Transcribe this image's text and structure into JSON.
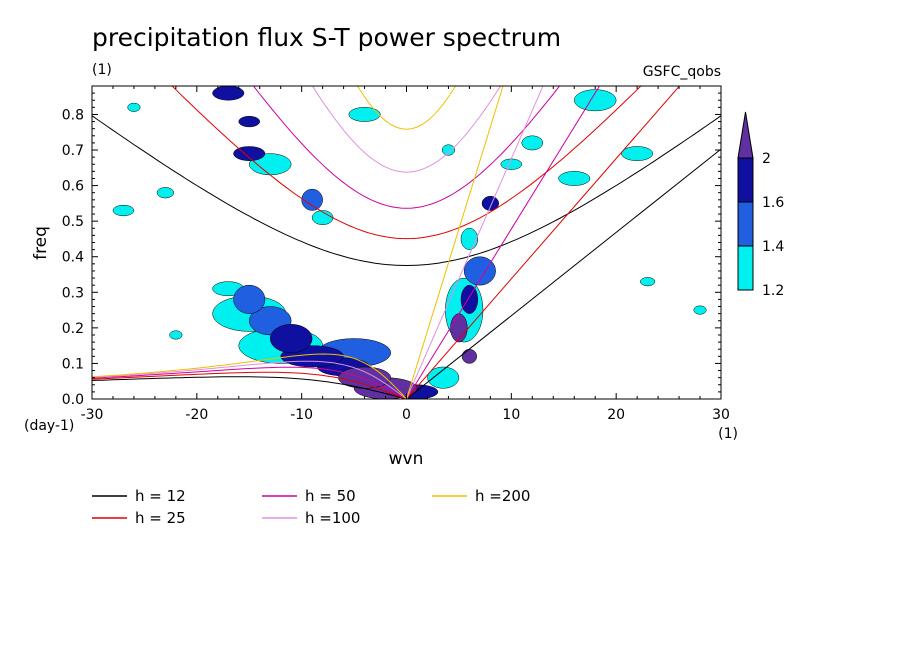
{
  "chart_data": {
    "type": "heatmap",
    "title": "precipitation flux S-T power spectrum",
    "left_subtitle": "(1)",
    "right_subtitle": "GSFC_qobs",
    "xlabel": "wvn",
    "ylabel": "freq",
    "x_unit": "(1)",
    "y_unit": "(day-1)",
    "xlim": [
      -30,
      30
    ],
    "ylim": [
      0,
      0.88
    ],
    "xticks": [
      -30,
      -20,
      -10,
      0,
      10,
      20,
      30
    ],
    "xtick_labels": [
      "-30",
      "-20",
      "-10",
      "0",
      "10",
      "20",
      "30"
    ],
    "yticks": [
      0,
      0.1,
      0.2,
      0.3,
      0.4,
      0.5,
      0.6,
      0.7,
      0.8
    ],
    "ytick_labels": [
      "0.0",
      "0.1",
      "0.2",
      "0.3",
      "0.4",
      "0.5",
      "0.6",
      "0.7",
      "0.8"
    ],
    "colorbar": {
      "levels": [
        1.2,
        1.4,
        1.6,
        2
      ],
      "labels": [
        "1.2",
        "1.4",
        "1.6",
        "2"
      ],
      "colors": [
        "#00f0f0",
        "#2060e0",
        "#1010a0",
        "#6030a0"
      ],
      "extend": "max"
    },
    "dispersion_curves": [
      {
        "label": "h = 12",
        "h": 12,
        "color": "#000000"
      },
      {
        "label": "h = 25",
        "h": 25,
        "color": "#e00000"
      },
      {
        "label": "h = 50",
        "h": 50,
        "color": "#d000a0"
      },
      {
        "label": "h =100",
        "h": 100,
        "color": "#e090e0"
      },
      {
        "label": "h =200",
        "h": 200,
        "color": "#f0c000"
      }
    ],
    "contour_blobs": [
      {
        "x": -2,
        "y": 0.03,
        "rx": 3.0,
        "ry": 0.03,
        "level": 3
      },
      {
        "x": -4,
        "y": 0.06,
        "rx": 2.5,
        "ry": 0.03,
        "level": 3
      },
      {
        "x": -6,
        "y": 0.09,
        "rx": 2.5,
        "ry": 0.025,
        "level": 2
      },
      {
        "x": -9,
        "y": 0.12,
        "rx": 3.0,
        "ry": 0.03,
        "level": 2
      },
      {
        "x": -11,
        "y": 0.17,
        "rx": 2.0,
        "ry": 0.04,
        "level": 2
      },
      {
        "x": -13,
        "y": 0.22,
        "rx": 2.0,
        "ry": 0.04,
        "level": 1
      },
      {
        "x": -15,
        "y": 0.28,
        "rx": 1.5,
        "ry": 0.04,
        "level": 1
      },
      {
        "x": -5,
        "y": 0.13,
        "rx": 3.5,
        "ry": 0.04,
        "level": 1
      },
      {
        "x": -12,
        "y": 0.15,
        "rx": 4.0,
        "ry": 0.05,
        "level": 0
      },
      {
        "x": -15,
        "y": 0.24,
        "rx": 3.5,
        "ry": 0.05,
        "level": 0
      },
      {
        "x": -17,
        "y": 0.31,
        "rx": 1.5,
        "ry": 0.02,
        "level": 0
      },
      {
        "x": 1,
        "y": 0.02,
        "rx": 2.0,
        "ry": 0.02,
        "level": 2
      },
      {
        "x": 3.5,
        "y": 0.06,
        "rx": 1.5,
        "ry": 0.03,
        "level": 0
      },
      {
        "x": 5,
        "y": 0.2,
        "rx": 0.8,
        "ry": 0.04,
        "level": 3
      },
      {
        "x": 6,
        "y": 0.28,
        "rx": 0.8,
        "ry": 0.04,
        "level": 2
      },
      {
        "x": 5.5,
        "y": 0.25,
        "rx": 1.8,
        "ry": 0.09,
        "level": 0
      },
      {
        "x": 7,
        "y": 0.36,
        "rx": 1.5,
        "ry": 0.04,
        "level": 1
      },
      {
        "x": 6,
        "y": 0.12,
        "rx": 0.7,
        "ry": 0.02,
        "level": 3
      },
      {
        "x": 8,
        "y": 0.55,
        "rx": 0.8,
        "ry": 0.02,
        "level": 2
      },
      {
        "x": -15,
        "y": 0.69,
        "rx": 1.5,
        "ry": 0.02,
        "level": 2
      },
      {
        "x": -13,
        "y": 0.66,
        "rx": 2.0,
        "ry": 0.03,
        "level": 0
      },
      {
        "x": -17,
        "y": 0.86,
        "rx": 1.5,
        "ry": 0.02,
        "level": 2
      },
      {
        "x": -15,
        "y": 0.78,
        "rx": 1.0,
        "ry": 0.015,
        "level": 2
      },
      {
        "x": -9,
        "y": 0.56,
        "rx": 1.0,
        "ry": 0.03,
        "level": 1
      },
      {
        "x": -8,
        "y": 0.51,
        "rx": 1.0,
        "ry": 0.02,
        "level": 0
      },
      {
        "x": -4,
        "y": 0.8,
        "rx": 1.5,
        "ry": 0.02,
        "level": 0
      },
      {
        "x": 16,
        "y": 0.62,
        "rx": 1.5,
        "ry": 0.02,
        "level": 0
      },
      {
        "x": 12,
        "y": 0.72,
        "rx": 1.0,
        "ry": 0.02,
        "level": 0
      },
      {
        "x": 18,
        "y": 0.84,
        "rx": 2.0,
        "ry": 0.03,
        "level": 0
      },
      {
        "x": 22,
        "y": 0.69,
        "rx": 1.5,
        "ry": 0.02,
        "level": 0
      },
      {
        "x": 10,
        "y": 0.66,
        "rx": 1.0,
        "ry": 0.015,
        "level": 0
      },
      {
        "x": -27,
        "y": 0.53,
        "rx": 1.0,
        "ry": 0.015,
        "level": 0
      },
      {
        "x": -23,
        "y": 0.58,
        "rx": 0.8,
        "ry": 0.015,
        "level": 0
      },
      {
        "x": -22,
        "y": 0.18,
        "rx": 0.6,
        "ry": 0.012,
        "level": 0
      },
      {
        "x": 23,
        "y": 0.33,
        "rx": 0.7,
        "ry": 0.012,
        "level": 0
      },
      {
        "x": 6,
        "y": 0.45,
        "rx": 0.8,
        "ry": 0.03,
        "level": 0
      },
      {
        "x": 4,
        "y": 0.7,
        "rx": 0.6,
        "ry": 0.015,
        "level": 0
      },
      {
        "x": -26,
        "y": 0.82,
        "rx": 0.6,
        "ry": 0.012,
        "level": 0
      },
      {
        "x": 28,
        "y": 0.25,
        "rx": 0.6,
        "ry": 0.012,
        "level": 0
      }
    ]
  }
}
